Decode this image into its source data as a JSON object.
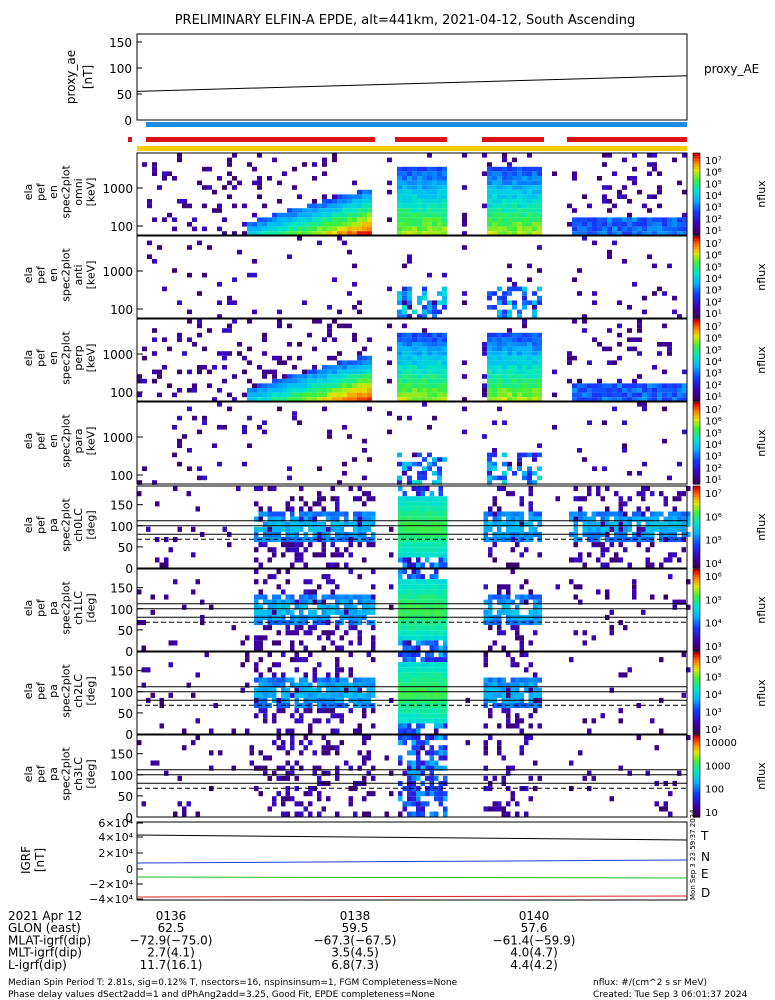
{
  "title": "PRELIMINARY ELFIN-A EPDE, alt=441km, 2021-04-12, South Ascending",
  "proxy_ae": {
    "ylabel_line1": "proxy_ae",
    "ylabel_line2": "[nT]",
    "yticks": [
      "150",
      "100",
      "50",
      "0"
    ],
    "legend": "proxy_AE",
    "ylim": [
      0,
      150
    ],
    "x": [
      0,
      1
    ],
    "y": [
      55,
      85
    ]
  },
  "energy_panels": [
    {
      "ylabel": [
        "ela",
        "pef",
        "en",
        "spec2plot",
        "omni",
        "[keV]"
      ],
      "yticks": [
        "1000",
        "100"
      ],
      "cbar_label": "nflux",
      "cbar_ticks": [
        "10⁷",
        "10⁶",
        "10⁵",
        "10⁴",
        "10³",
        "10²",
        "10¹"
      ]
    },
    {
      "ylabel": [
        "ela",
        "pef",
        "en",
        "spec2plot",
        "anti",
        "[keV]"
      ],
      "yticks": [
        "1000",
        "100"
      ],
      "cbar_label": "nflux",
      "cbar_ticks": [
        "10⁷",
        "10⁶",
        "10⁵",
        "10⁴",
        "10³",
        "10²",
        "10¹"
      ]
    },
    {
      "ylabel": [
        "ela",
        "pef",
        "en",
        "spec2plot",
        "perp",
        "[keV]"
      ],
      "yticks": [
        "1000",
        "100"
      ],
      "cbar_label": "nflux",
      "cbar_ticks": [
        "10⁷",
        "10⁶",
        "10⁵",
        "10⁴",
        "10³",
        "10²",
        "10¹"
      ]
    },
    {
      "ylabel": [
        "ela",
        "pef",
        "en",
        "spec2plot",
        "para",
        "[keV]"
      ],
      "yticks": [
        "1000",
        "100"
      ],
      "cbar_label": "nflux",
      "cbar_ticks": [
        "10⁷",
        "10⁶",
        "10⁵",
        "10⁴",
        "10³",
        "10²",
        "10¹"
      ]
    }
  ],
  "pitch_panels": [
    {
      "ylabel": [
        "ela",
        "pef",
        "pa",
        "spec2plot",
        "ch0LC",
        "[deg]"
      ],
      "yticks": [
        "150",
        "100",
        "50",
        "0"
      ],
      "cbar_label": "nflux",
      "cbar_ticks": [
        "10⁷",
        "10⁶",
        "10⁵",
        "10⁴"
      ]
    },
    {
      "ylabel": [
        "ela",
        "pef",
        "pa",
        "spec2plot",
        "ch1LC",
        "[deg]"
      ],
      "yticks": [
        "150",
        "100",
        "50",
        "0"
      ],
      "cbar_label": "nflux",
      "cbar_ticks": [
        "10⁶",
        "10⁵",
        "10⁴",
        "10³"
      ]
    },
    {
      "ylabel": [
        "ela",
        "pef",
        "pa",
        "spec2plot",
        "ch2LC",
        "[deg]"
      ],
      "yticks": [
        "150",
        "100",
        "50",
        "0"
      ],
      "cbar_label": "nflux",
      "cbar_ticks": [
        "10⁶",
        "10⁵",
        "10⁴",
        "10³",
        "10²"
      ]
    },
    {
      "ylabel": [
        "ela",
        "pef",
        "pa",
        "spec2plot",
        "ch3LC",
        "[deg]"
      ],
      "yticks": [
        "150",
        "100",
        "50",
        "0"
      ],
      "cbar_label": "nflux",
      "cbar_ticks": [
        "10000",
        "1000",
        "100",
        "10"
      ]
    }
  ],
  "igrf": {
    "ylabel_line1": "IGRF",
    "ylabel_line2": "[nT]",
    "yticks": [
      "6×10⁴",
      "4×10⁴",
      "2×10⁴",
      "0",
      "−2×10⁴",
      "−4×10⁴"
    ],
    "legend": [
      {
        "name": "T",
        "color": "#000000"
      },
      {
        "name": "N",
        "color": "#1a3fd6"
      },
      {
        "name": "E",
        "color": "#22bb22"
      },
      {
        "name": "D",
        "color": "#dd2222"
      }
    ],
    "side_text": "Mon Sep 3 23:59:37 2024"
  },
  "footer_table": {
    "rows": [
      {
        "label": "2021 Apr 12",
        "values": [
          "0136",
          "0138",
          "0140"
        ]
      },
      {
        "label": "GLON (east)",
        "values": [
          "62.5",
          "59.5",
          "57.6"
        ]
      },
      {
        "label": "MLAT-igrf(dip)",
        "values": [
          "−72.9(−75.0)",
          "−67.3(−67.5)",
          "−61.4(−59.9)"
        ]
      },
      {
        "label": "MLT-igrf(dip)",
        "values": [
          "2.7(4.1)",
          "3.5(4.5)",
          "4.0(4.7)"
        ]
      },
      {
        "label": "L-igrf(dip)",
        "values": [
          "11.7(16.1)",
          "6.8(7.3)",
          "4.4(4.2)"
        ]
      }
    ]
  },
  "footnote_line1": "Median Spin Period T: 2.81s, sig=0.12% T, nsectors=16, nspinsinsum=1, FGM Completeness=None",
  "footnote_line2": "Phase delay values dSect2add=1 and dPhAng2add=3.25, Good Fit, EPDE completeness=None",
  "units_note": "nflux: #/(cm^2 s sr MeV)",
  "created_note": "Created: Tue Sep  3 06:01:37 2024",
  "colors": {
    "bar_red": "#dd1111",
    "bar_blue": "#1e8ce0",
    "bar_yellow": "#ffcc00",
    "igrf_T": "#000000",
    "igrf_N": "#1a3fd6",
    "igrf_E": "#22bb22",
    "igrf_D": "#dd2222"
  }
}
